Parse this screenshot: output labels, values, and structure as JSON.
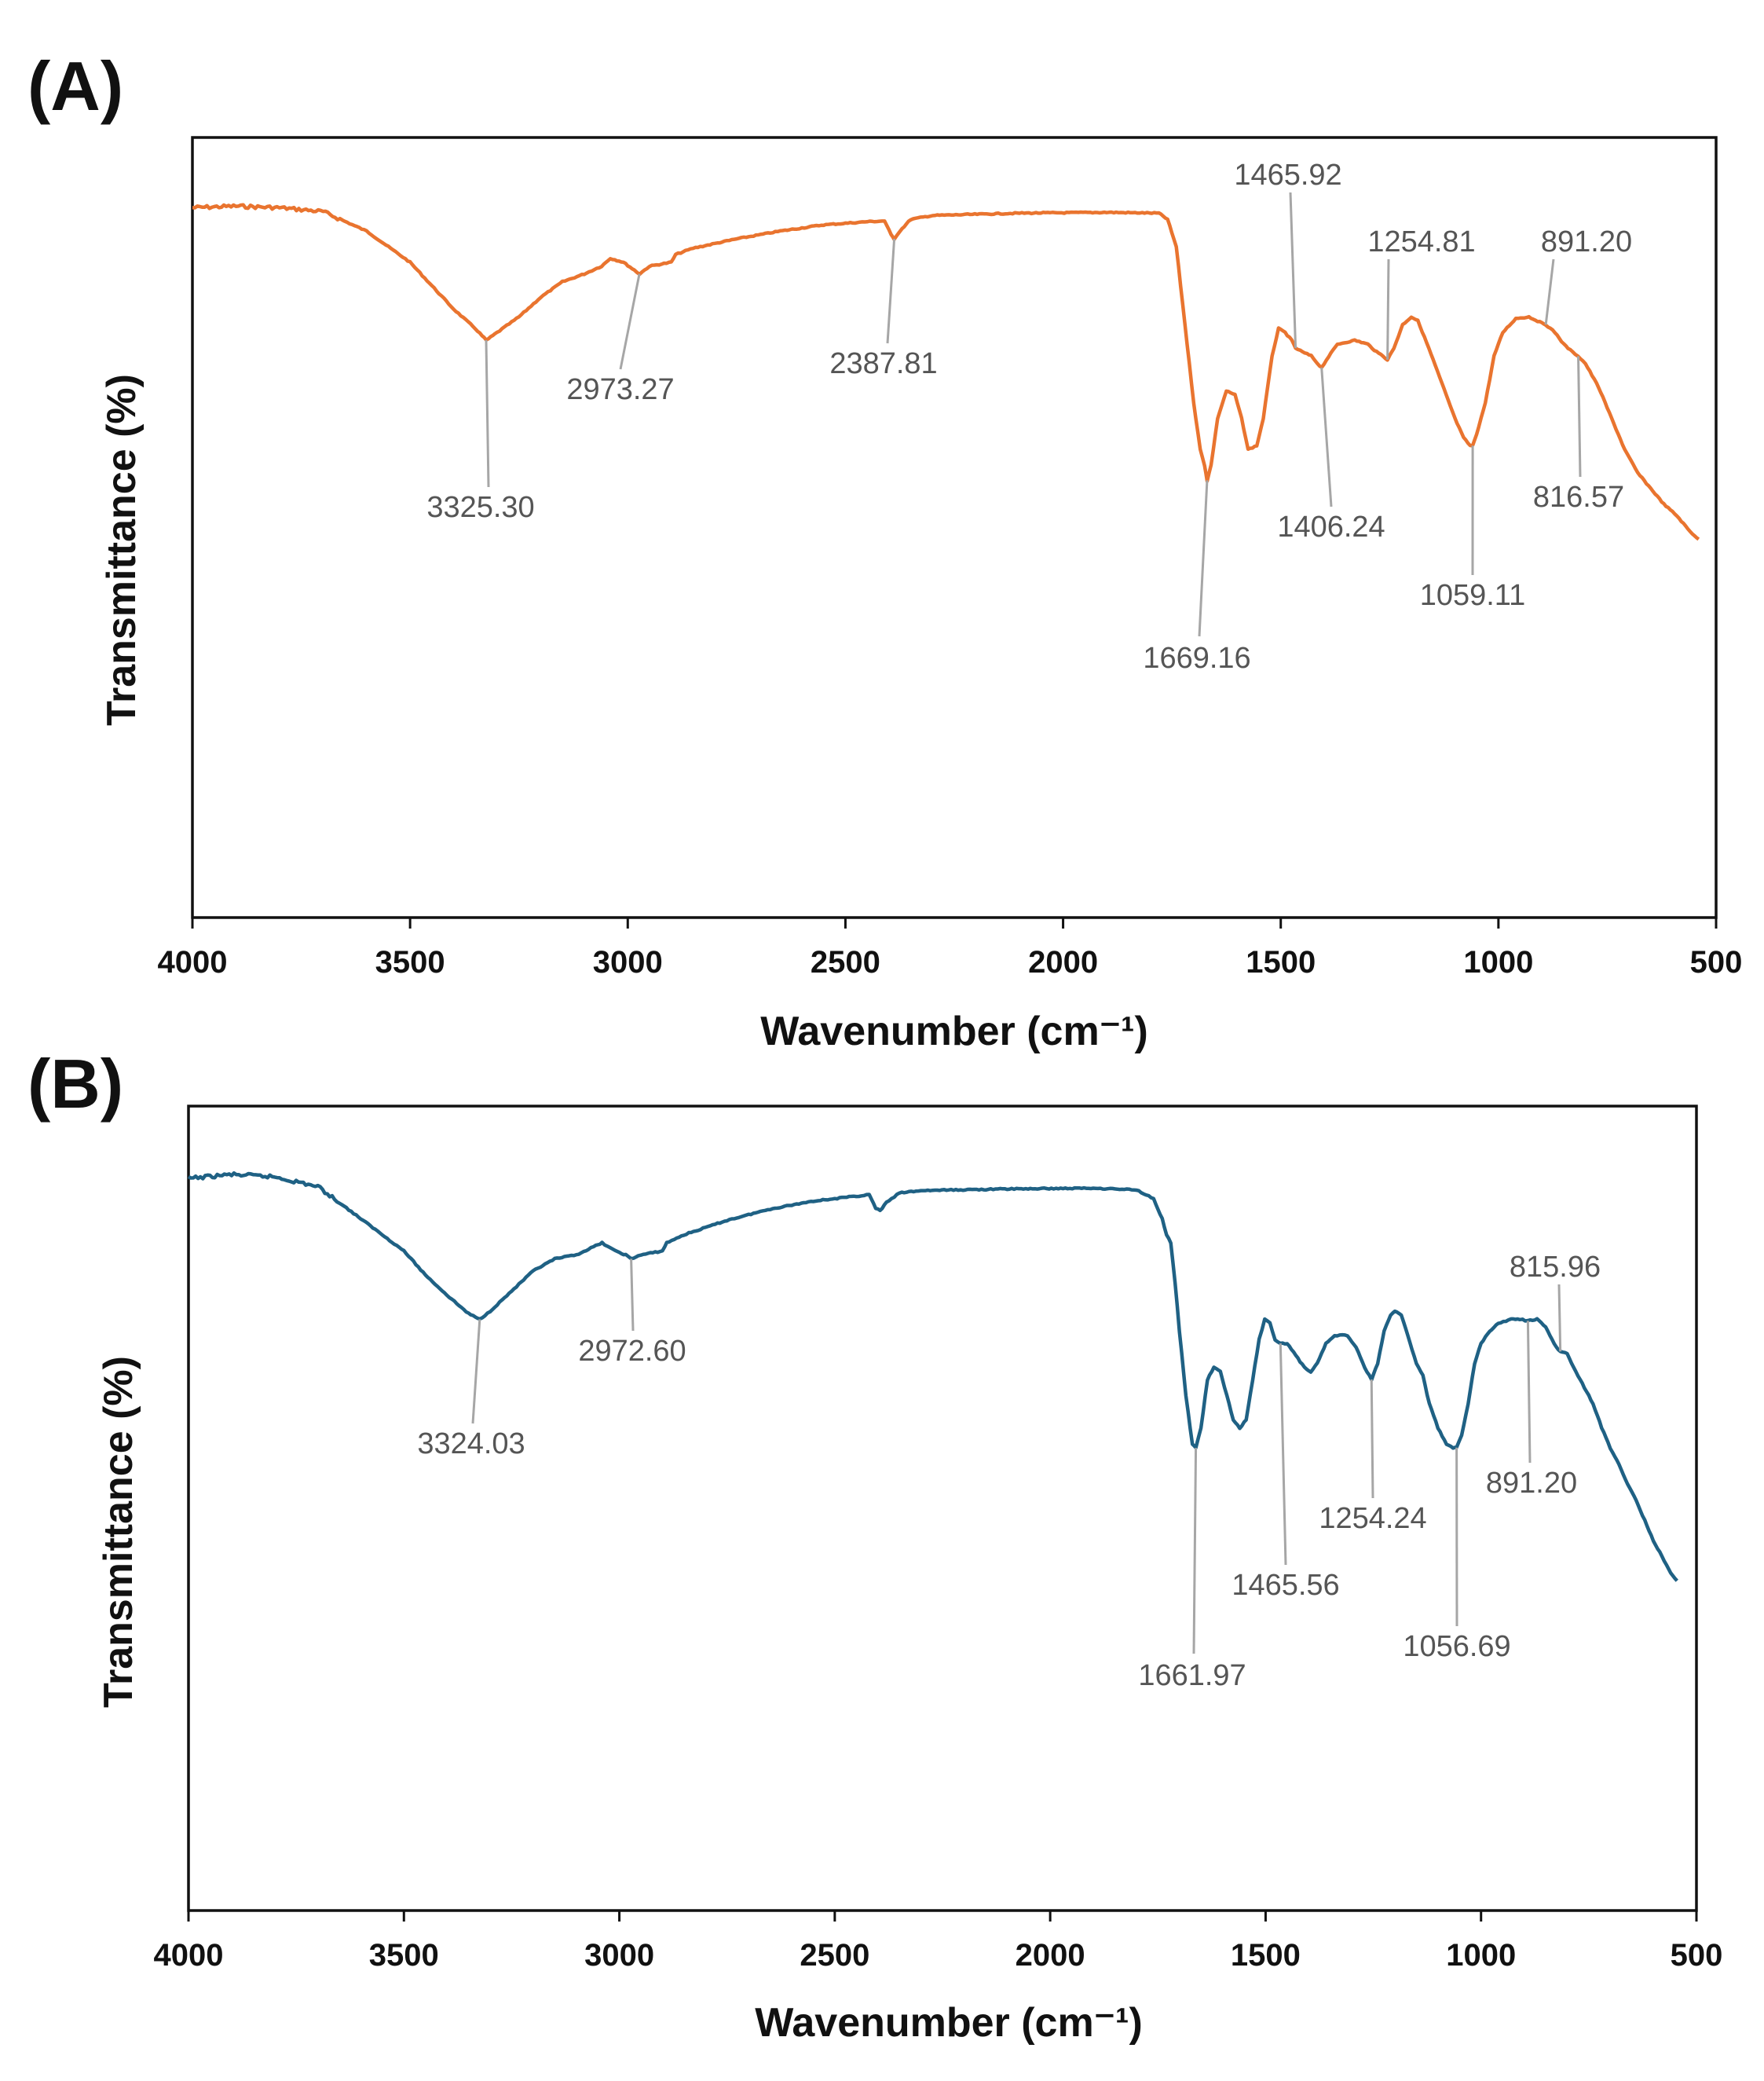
{
  "colors": {
    "panel_a_line": "#E9742F",
    "panel_b_line": "#1F6184"
  },
  "chart_data": [
    {
      "type": "line",
      "panel": "(A)",
      "xlabel": "Wavenumber (cm⁻¹)",
      "ylabel": "Transmittance (%)",
      "xlim": [
        4000,
        500
      ],
      "x_reversed": true,
      "ylim": [
        0,
        100
      ],
      "y_tick_labels": false,
      "grid": false,
      "x_ticks": [
        4000,
        3500,
        3000,
        2500,
        2000,
        1500,
        1000,
        500
      ],
      "series": [
        {
          "points": [
            [
              4000,
              91
            ],
            [
              3900,
              91.2
            ],
            [
              3800,
              91
            ],
            [
              3700,
              90.5
            ],
            [
              3600,
              88
            ],
            [
              3500,
              84
            ],
            [
              3450,
              81
            ],
            [
              3400,
              78
            ],
            [
              3350,
              75.5
            ],
            [
              3325,
              74
            ],
            [
              3300,
              75
            ],
            [
              3250,
              77
            ],
            [
              3200,
              79.5
            ],
            [
              3150,
              81.5
            ],
            [
              3100,
              82.5
            ],
            [
              3060,
              83.5
            ],
            [
              3040,
              84.5
            ],
            [
              3010,
              84
            ],
            [
              2985,
              83
            ],
            [
              2973,
              82.5
            ],
            [
              2950,
              83.5
            ],
            [
              2900,
              84
            ],
            [
              2890,
              85
            ],
            [
              2850,
              85.8
            ],
            [
              2750,
              87
            ],
            [
              2650,
              88
            ],
            [
              2550,
              88.8
            ],
            [
              2450,
              89.2
            ],
            [
              2410,
              89.3
            ],
            [
              2395,
              87.5
            ],
            [
              2388,
              87
            ],
            [
              2375,
              88
            ],
            [
              2350,
              89.5
            ],
            [
              2300,
              90
            ],
            [
              2100,
              90.3
            ],
            [
              1900,
              90.4
            ],
            [
              1780,
              90.3
            ],
            [
              1760,
              89.5
            ],
            [
              1740,
              86
            ],
            [
              1720,
              76
            ],
            [
              1700,
              66
            ],
            [
              1685,
              60
            ],
            [
              1675,
              58
            ],
            [
              1669,
              56
            ],
            [
              1660,
              58
            ],
            [
              1645,
              64
            ],
            [
              1625,
              67.5
            ],
            [
              1605,
              67
            ],
            [
              1590,
              64
            ],
            [
              1575,
              60
            ],
            [
              1555,
              60.5
            ],
            [
              1540,
              64
            ],
            [
              1520,
              72
            ],
            [
              1505,
              75.5
            ],
            [
              1490,
              75
            ],
            [
              1475,
              74
            ],
            [
              1466,
              73
            ],
            [
              1450,
              72.5
            ],
            [
              1430,
              72
            ],
            [
              1415,
              71
            ],
            [
              1406,
              70.5
            ],
            [
              1395,
              71.5
            ],
            [
              1370,
              73.5
            ],
            [
              1330,
              74
            ],
            [
              1300,
              73.5
            ],
            [
              1280,
              72.5
            ],
            [
              1265,
              72
            ],
            [
              1255,
              71.5
            ],
            [
              1240,
              73
            ],
            [
              1220,
              76
            ],
            [
              1200,
              77
            ],
            [
              1185,
              76.5
            ],
            [
              1160,
              73
            ],
            [
              1140,
              70
            ],
            [
              1120,
              67
            ],
            [
              1100,
              64
            ],
            [
              1080,
              61.5
            ],
            [
              1065,
              60.5
            ],
            [
              1059,
              60.5
            ],
            [
              1050,
              62
            ],
            [
              1030,
              66
            ],
            [
              1010,
              72
            ],
            [
              990,
              75
            ],
            [
              960,
              76.8
            ],
            [
              930,
              77
            ],
            [
              900,
              76.2
            ],
            [
              891,
              76
            ],
            [
              870,
              75
            ],
            [
              850,
              73.5
            ],
            [
              830,
              72.5
            ],
            [
              817,
              72
            ],
            [
              800,
              71
            ],
            [
              770,
              68
            ],
            [
              740,
              64
            ],
            [
              710,
              60
            ],
            [
              680,
              57
            ],
            [
              650,
              55
            ],
            [
              620,
              53
            ],
            [
              590,
              51.5
            ],
            [
              560,
              49.5
            ],
            [
              540,
              48.5
            ]
          ]
        }
      ],
      "annotations": [
        {
          "label": "3325.30",
          "x": 3325.3
        },
        {
          "label": "2973.27",
          "x": 2973.27
        },
        {
          "label": "2387.81",
          "x": 2387.81
        },
        {
          "label": "1669.16",
          "x": 1669.16
        },
        {
          "label": "1465.92",
          "x": 1465.92
        },
        {
          "label": "1406.24",
          "x": 1406.24
        },
        {
          "label": "1254.81",
          "x": 1254.81
        },
        {
          "label": "1059.11",
          "x": 1059.11
        },
        {
          "label": "891.20",
          "x": 891.2
        },
        {
          "label": "816.57",
          "x": 816.57
        }
      ]
    },
    {
      "type": "line",
      "panel": "(B)",
      "xlabel": "Wavenumber (cm⁻¹)",
      "ylabel": "Transmittance (%)",
      "xlim": [
        4000,
        500
      ],
      "x_reversed": true,
      "ylim": [
        0,
        100
      ],
      "y_tick_labels": false,
      "grid": false,
      "x_ticks": [
        4000,
        3500,
        3000,
        2500,
        2000,
        1500,
        1000,
        500
      ],
      "series": [
        {
          "points": [
            [
              4000,
              91
            ],
            [
              3900,
              91.5
            ],
            [
              3800,
              91.2
            ],
            [
              3700,
              90
            ],
            [
              3600,
              86
            ],
            [
              3500,
              82
            ],
            [
              3450,
              79
            ],
            [
              3400,
              76.5
            ],
            [
              3350,
              74.2
            ],
            [
              3324,
              73.5
            ],
            [
              3300,
              74.5
            ],
            [
              3250,
              77
            ],
            [
              3200,
              79.5
            ],
            [
              3150,
              81
            ],
            [
              3100,
              81.5
            ],
            [
              3060,
              82.5
            ],
            [
              3040,
              83
            ],
            [
              3010,
              82
            ],
            [
              2985,
              81.5
            ],
            [
              2973,
              81
            ],
            [
              2950,
              81.5
            ],
            [
              2900,
              82
            ],
            [
              2890,
              83
            ],
            [
              2850,
              84
            ],
            [
              2750,
              85.8
            ],
            [
              2650,
              87.2
            ],
            [
              2550,
              88.2
            ],
            [
              2450,
              88.8
            ],
            [
              2420,
              89
            ],
            [
              2405,
              87.3
            ],
            [
              2395,
              87
            ],
            [
              2380,
              88
            ],
            [
              2350,
              89.2
            ],
            [
              2300,
              89.5
            ],
            [
              2100,
              89.7
            ],
            [
              1900,
              89.8
            ],
            [
              1800,
              89.6
            ],
            [
              1760,
              88.5
            ],
            [
              1740,
              86
            ],
            [
              1730,
              84
            ],
            [
              1720,
              83
            ],
            [
              1710,
              78
            ],
            [
              1700,
              72
            ],
            [
              1685,
              64
            ],
            [
              1670,
              58
            ],
            [
              1662,
              57.5
            ],
            [
              1650,
              60
            ],
            [
              1635,
              66
            ],
            [
              1620,
              67.5
            ],
            [
              1605,
              67
            ],
            [
              1590,
              64
            ],
            [
              1575,
              61
            ],
            [
              1560,
              60
            ],
            [
              1545,
              61
            ],
            [
              1530,
              66
            ],
            [
              1515,
              71
            ],
            [
              1502,
              73.5
            ],
            [
              1490,
              73
            ],
            [
              1478,
              71
            ],
            [
              1466,
              70.5
            ],
            [
              1450,
              70.5
            ],
            [
              1430,
              69
            ],
            [
              1410,
              67.5
            ],
            [
              1395,
              67
            ],
            [
              1380,
              68
            ],
            [
              1360,
              70.5
            ],
            [
              1340,
              71.5
            ],
            [
              1310,
              71.5
            ],
            [
              1290,
              70
            ],
            [
              1270,
              67.5
            ],
            [
              1254,
              66
            ],
            [
              1240,
              68
            ],
            [
              1225,
              72
            ],
            [
              1210,
              74
            ],
            [
              1200,
              74.5
            ],
            [
              1185,
              74
            ],
            [
              1170,
              71.5
            ],
            [
              1150,
              68
            ],
            [
              1135,
              66.5
            ],
            [
              1120,
              63
            ],
            [
              1100,
              60
            ],
            [
              1080,
              58
            ],
            [
              1065,
              57.5
            ],
            [
              1057,
              57.5
            ],
            [
              1045,
              59
            ],
            [
              1030,
              63
            ],
            [
              1015,
              68
            ],
            [
              1000,
              70.5
            ],
            [
              980,
              72
            ],
            [
              960,
              73
            ],
            [
              930,
              73.5
            ],
            [
              910,
              73.5
            ],
            [
              891,
              73.3
            ],
            [
              870,
              73.5
            ],
            [
              850,
              72.5
            ],
            [
              835,
              71
            ],
            [
              825,
              70
            ],
            [
              816,
              69.5
            ],
            [
              800,
              69.2
            ],
            [
              780,
              67
            ],
            [
              760,
              65
            ],
            [
              740,
              63
            ],
            [
              720,
              60
            ],
            [
              700,
              57.5
            ],
            [
              680,
              55.5
            ],
            [
              660,
              53
            ],
            [
              640,
              51
            ],
            [
              620,
              48.5
            ],
            [
              600,
              46
            ],
            [
              580,
              44
            ],
            [
              560,
              42
            ],
            [
              545,
              41
            ]
          ]
        }
      ],
      "annotations": [
        {
          "label": "3324.03",
          "x": 3324.03
        },
        {
          "label": "2972.60",
          "x": 2972.6
        },
        {
          "label": "1661.97",
          "x": 1661.97
        },
        {
          "label": "1465.56",
          "x": 1465.56
        },
        {
          "label": "1254.24",
          "x": 1254.24
        },
        {
          "label": "1056.69",
          "x": 1056.69
        },
        {
          "label": "891.20",
          "x": 891.2
        },
        {
          "label": "815.96",
          "x": 815.96
        }
      ]
    }
  ]
}
